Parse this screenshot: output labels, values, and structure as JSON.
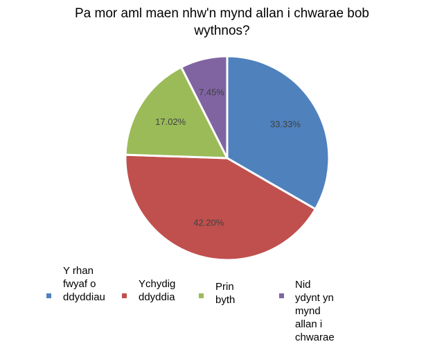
{
  "chart_data": {
    "type": "pie",
    "title_lines": [
      "Pa mor aml maen nhw'n mynd allan i chwarae bob",
      "wythnos?"
    ],
    "slices": [
      {
        "name": "Y rhan fwyaf o ddyddiau",
        "value": 33.33,
        "label": "33.33%",
        "color": "#4F81BD"
      },
      {
        "name": "Ychydig ddyddia",
        "value": 42.2,
        "label": "42.20%",
        "color": "#C0504D"
      },
      {
        "name": "Prin byth",
        "value": 17.02,
        "label": "17.02%",
        "color": "#9BBB59"
      },
      {
        "name": "Nid ydynt yn mynd allan i chwarae",
        "value": 7.45,
        "label": "7.45%",
        "color": "#8064A2"
      }
    ],
    "legend_position": "bottom",
    "legend": [
      {
        "text": "Y rhan\nfwyaf o\nddyddiau",
        "color": "#4F81BD"
      },
      {
        "text": "Ychydig\nddyddia",
        "color": "#C0504D"
      },
      {
        "text": "Prin\nbyth",
        "color": "#9BBB59"
      },
      {
        "text": "Nid ydynt yn mynd allan i\nchwarae",
        "color": "#8064A2"
      }
    ]
  }
}
